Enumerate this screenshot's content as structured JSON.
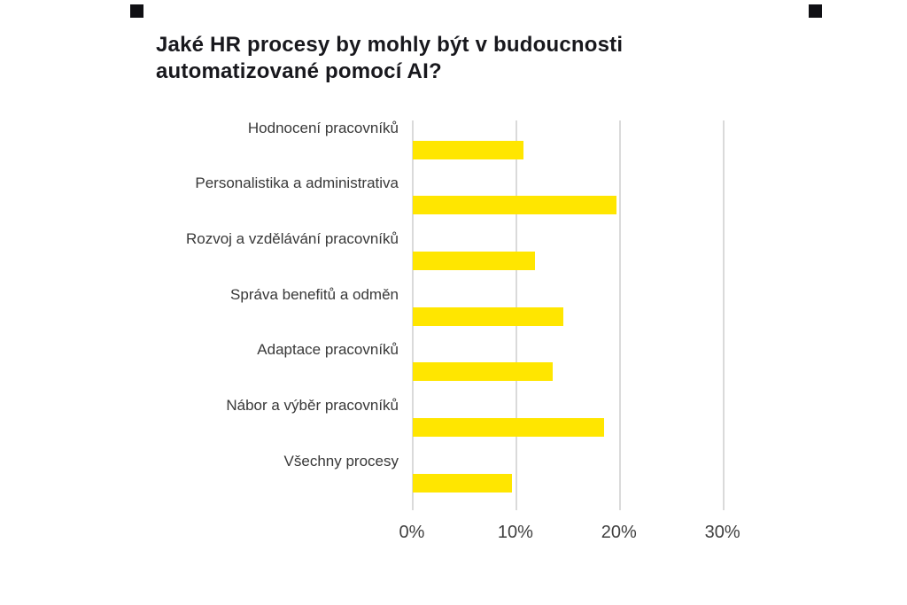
{
  "page": {
    "background": "#FFFFFF"
  },
  "colors": {
    "bar": "#FFE600",
    "gridline": "#DADADA",
    "title_text": "#18181D",
    "category_text": "#383838",
    "tick_text": "#3F3F3F",
    "corner_mark": "#101014"
  },
  "chart_data": {
    "type": "bar",
    "orientation": "horizontal",
    "title": "Jaké HR procesy by mohly být v budoucnosti automatizované pomocí AI?",
    "categories": [
      "Hodnocení pracovníků",
      "Personalistika a administrativa",
      "Rozvoj a vzdělávání pracovníků",
      "Správa benefitů a odměn",
      "Adaptace pracovníků",
      "Nábor a výběr pracovníků",
      "Všechny procesy"
    ],
    "values": [
      10.7,
      19.7,
      11.8,
      14.5,
      13.5,
      18.5,
      9.6
    ],
    "value_unit": "%",
    "x_tick_labels": [
      "0%",
      "10%",
      "20%",
      "30%"
    ],
    "x_tick_values": [
      0,
      10,
      20,
      30
    ],
    "xlim": [
      0,
      30
    ],
    "grid": "vertical-gridlines",
    "legend": "none",
    "bar_color": "#FFE600"
  }
}
